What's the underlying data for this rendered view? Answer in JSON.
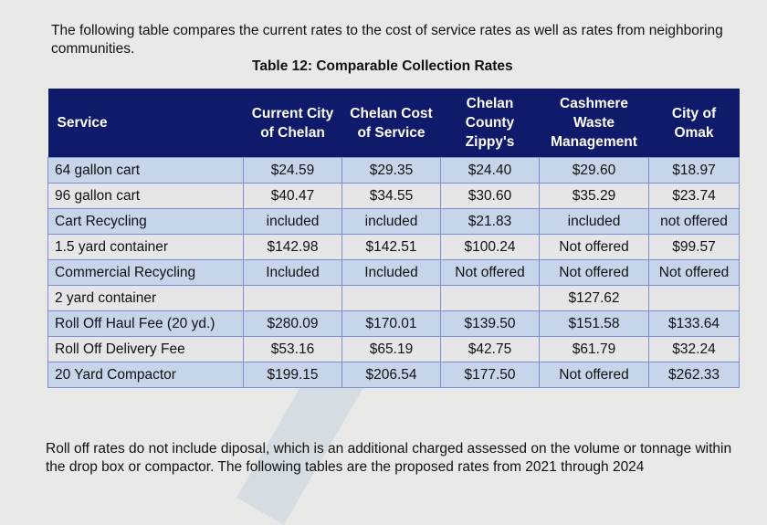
{
  "intro": "The following table compares the current rates to the cost of service rates as well as rates from neighboring communities.",
  "table_title": "Table 12: Comparable Collection Rates",
  "headers": [
    "Service",
    "Current City of Chelan",
    "Chelan Cost of Service",
    "Chelan County Zippy's",
    "Cashmere Waste Management",
    "City of Omak"
  ],
  "rows": [
    [
      "64 gallon cart",
      "$24.59",
      "$29.35",
      "$24.40",
      "$29.60",
      "$18.97"
    ],
    [
      "96 gallon cart",
      "$40.47",
      "$34.55",
      "$30.60",
      "$35.29",
      "$23.74"
    ],
    [
      "Cart Recycling",
      "included",
      "included",
      "$21.83",
      "included",
      "not offered"
    ],
    [
      "1.5 yard container",
      "$142.98",
      "$142.51",
      "$100.24",
      "Not offered",
      "$99.57"
    ],
    [
      "Commercial Recycling",
      "Included",
      "Included",
      "Not offered",
      "Not offered",
      "Not offered"
    ],
    [
      "2 yard container",
      "",
      "",
      "",
      "$127.62",
      ""
    ],
    [
      "Roll Off Haul Fee (20 yd.)",
      "$280.09",
      "$170.01",
      "$139.50",
      "$151.58",
      "$133.64"
    ],
    [
      "Roll Off Delivery Fee",
      "$53.16",
      "$65.19",
      "$42.75",
      "$61.79",
      "$32.24"
    ],
    [
      "20 Yard Compactor",
      "$199.15",
      "$206.54",
      "$177.50",
      "Not offered",
      "$262.33"
    ]
  ],
  "outro": "Roll off rates do not include diposal, which is an additional charged assessed on the volume or tonnage within the drop box or compactor. The following tables are the proposed rates from 2021 through 2024"
}
